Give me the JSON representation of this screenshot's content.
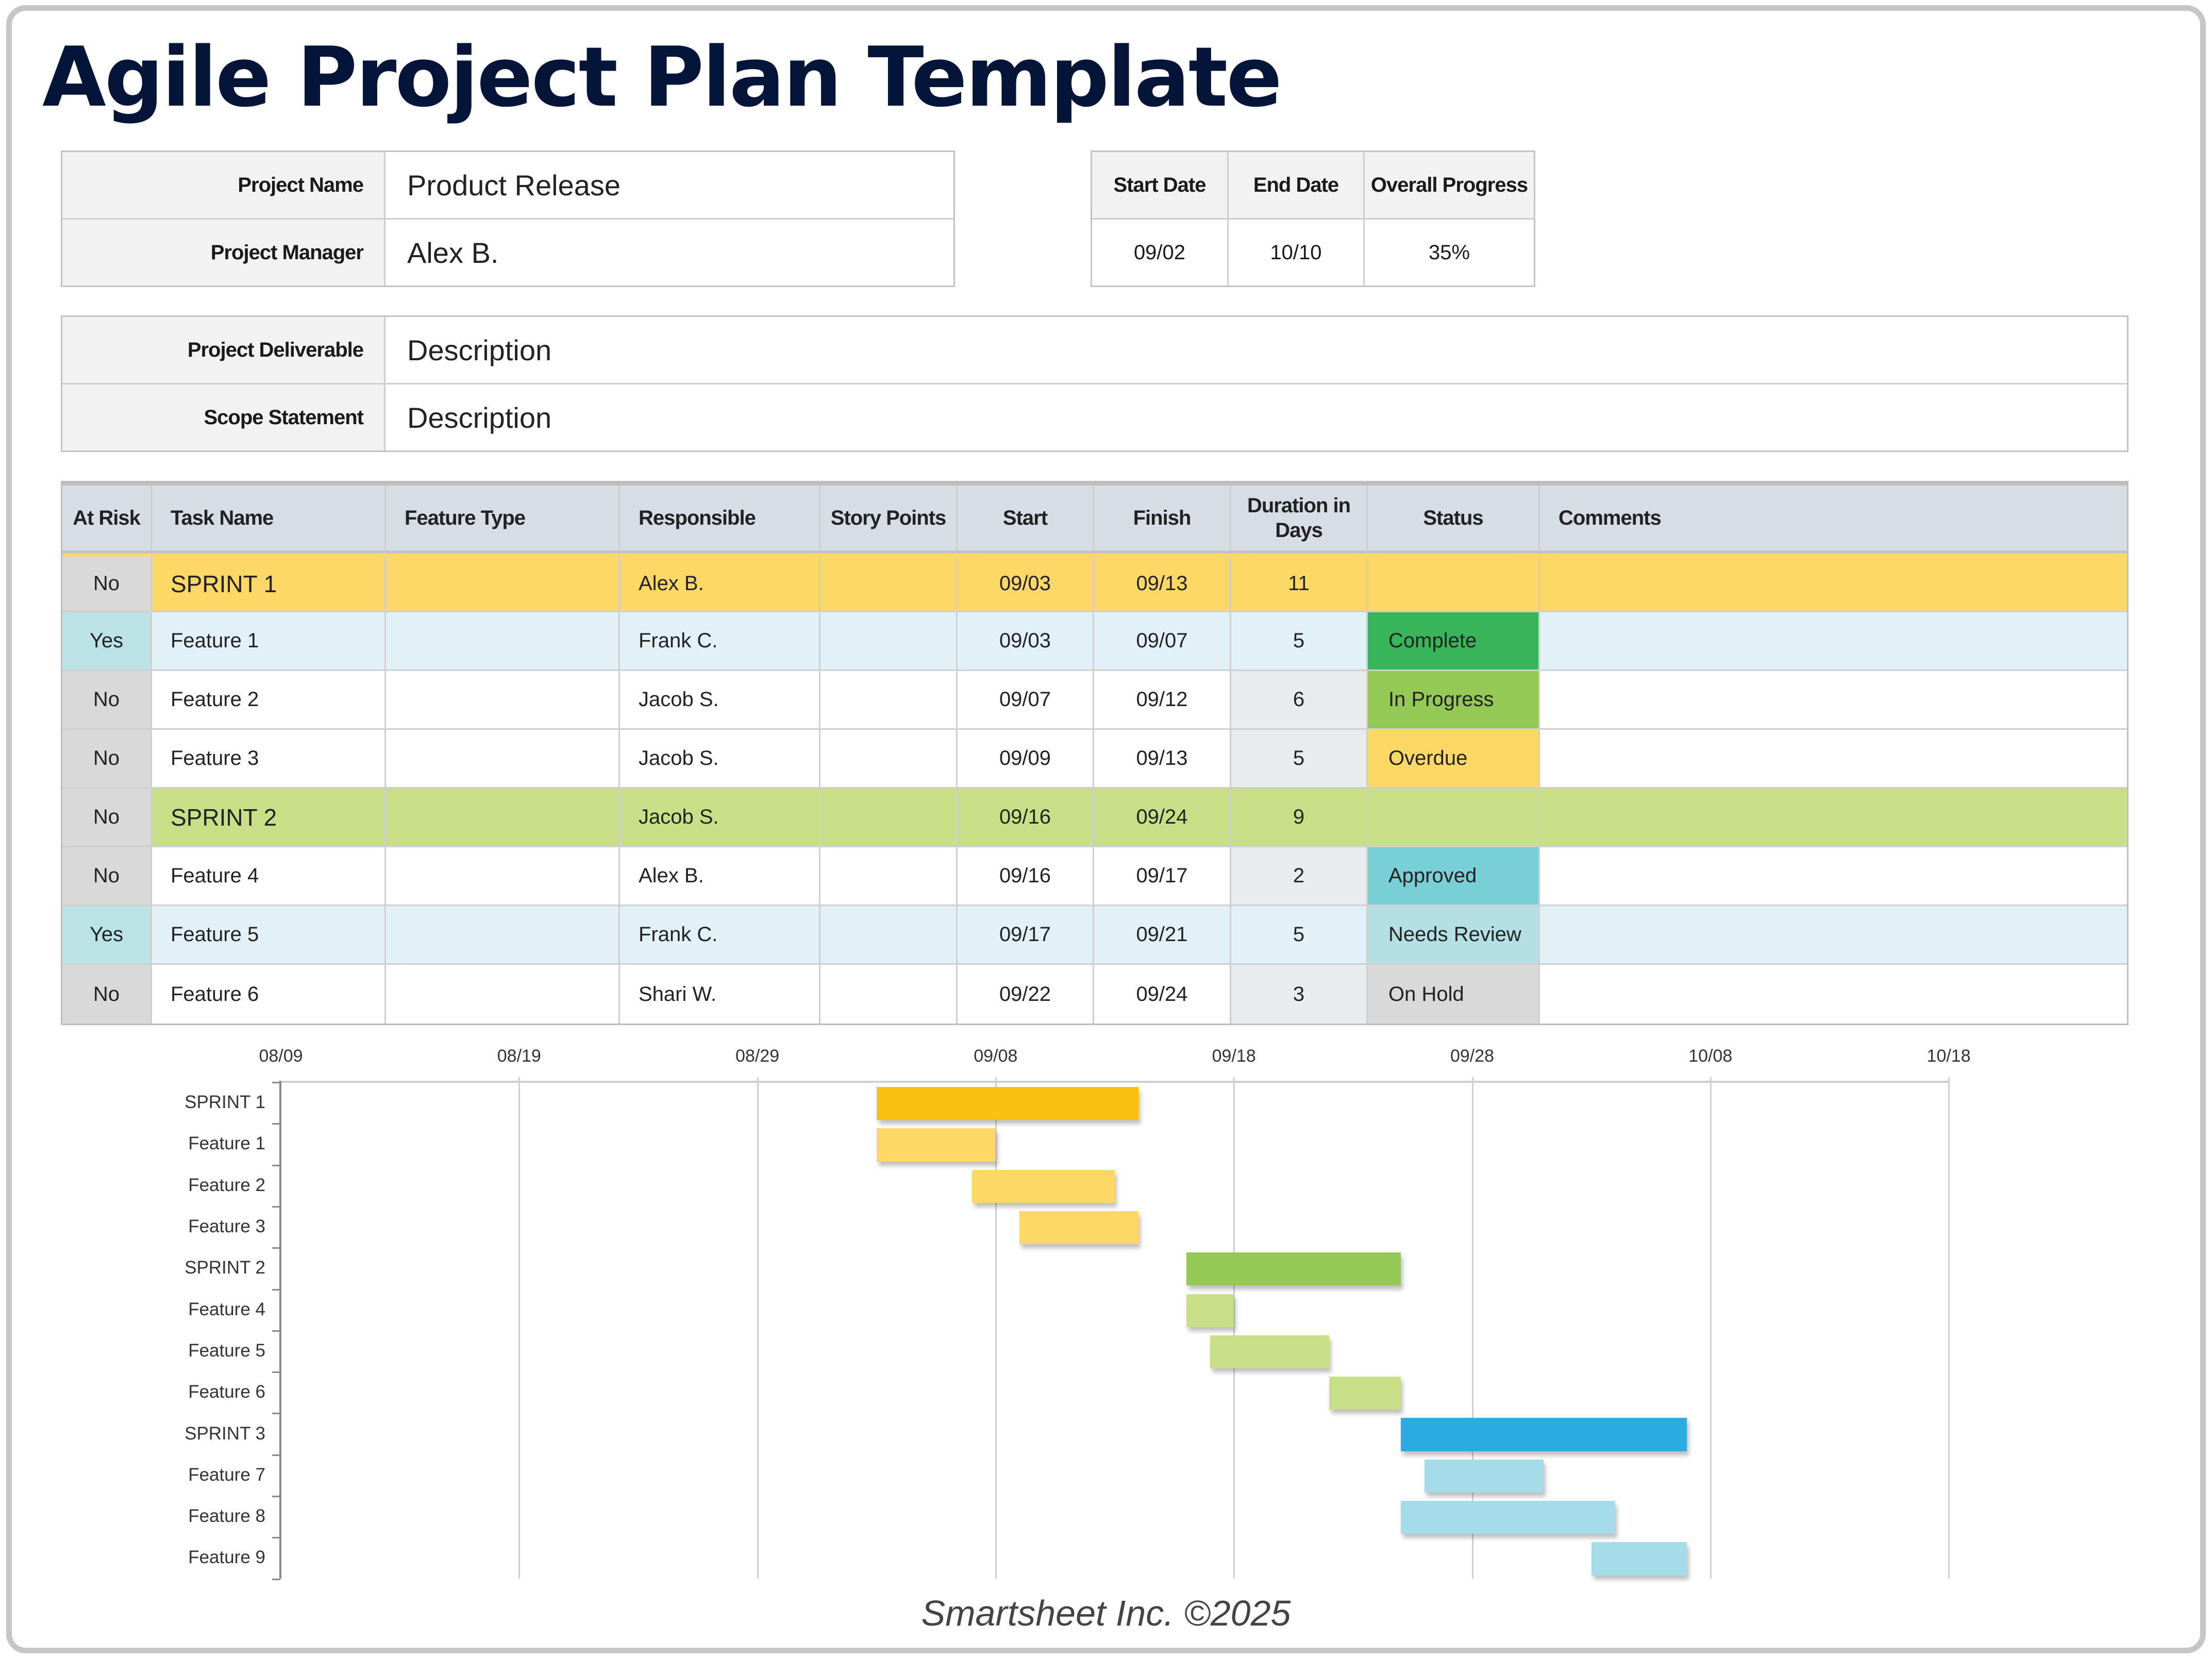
{
  "title": "Agile Project Plan Template",
  "project_info": {
    "rows": [
      {
        "label": "Project Name",
        "value": "Product Release"
      },
      {
        "label": "Project Manager",
        "value": "Alex B."
      }
    ]
  },
  "dates_box": {
    "headers": [
      "Start Date",
      "End Date",
      "Overall Progress"
    ],
    "values": [
      "09/02",
      "10/10",
      "35%"
    ]
  },
  "deliverable_box": {
    "rows": [
      {
        "label": "Project Deliverable",
        "value": "Description"
      },
      {
        "label": "Scope Statement",
        "value": "Description"
      }
    ]
  },
  "task_table": {
    "headers": {
      "at_risk": "At Risk",
      "task_name": "Task Name",
      "feature_type": "Feature Type",
      "responsible": "Responsible",
      "story_points": "Story Points",
      "start": "Start",
      "finish": "Finish",
      "duration": "Duration in Days",
      "status": "Status",
      "comments": "Comments"
    },
    "rows": [
      {
        "at_risk": "No",
        "task": "SPRINT 1",
        "feature_type": "",
        "responsible": "Alex B.",
        "story_points": "",
        "start": "09/03",
        "finish": "09/13",
        "duration": "11",
        "status": "",
        "comments": "",
        "kind": "sprint",
        "row_color": "#fdd866"
      },
      {
        "at_risk": "Yes",
        "task": "Feature 1",
        "feature_type": "",
        "responsible": "Frank C.",
        "story_points": "",
        "start": "09/03",
        "finish": "09/07",
        "duration": "5",
        "status": "Complete",
        "comments": "",
        "kind": "risk",
        "row_color": "#e2f1f7"
      },
      {
        "at_risk": "No",
        "task": "Feature 2",
        "feature_type": "",
        "responsible": "Jacob S.",
        "story_points": "",
        "start": "09/07",
        "finish": "09/12",
        "duration": "6",
        "status": "In Progress",
        "comments": "",
        "kind": "feature",
        "row_color": "#ffffff"
      },
      {
        "at_risk": "No",
        "task": "Feature 3",
        "feature_type": "",
        "responsible": "Jacob S.",
        "story_points": "",
        "start": "09/09",
        "finish": "09/13",
        "duration": "5",
        "status": "Overdue",
        "comments": "",
        "kind": "feature",
        "row_color": "#ffffff"
      },
      {
        "at_risk": "No",
        "task": "SPRINT 2",
        "feature_type": "",
        "responsible": "Jacob S.",
        "story_points": "",
        "start": "09/16",
        "finish": "09/24",
        "duration": "9",
        "status": "",
        "comments": "",
        "kind": "sprint",
        "row_color": "#c8df87"
      },
      {
        "at_risk": "No",
        "task": "Feature 4",
        "feature_type": "",
        "responsible": "Alex B.",
        "story_points": "",
        "start": "09/16",
        "finish": "09/17",
        "duration": "2",
        "status": "Approved",
        "comments": "",
        "kind": "feature",
        "row_color": "#ffffff"
      },
      {
        "at_risk": "Yes",
        "task": "Feature 5",
        "feature_type": "",
        "responsible": "Frank C.",
        "story_points": "",
        "start": "09/17",
        "finish": "09/21",
        "duration": "5",
        "status": "Needs Review",
        "comments": "",
        "kind": "risk",
        "row_color": "#e2f1f7"
      },
      {
        "at_risk": "No",
        "task": "Feature 6",
        "feature_type": "",
        "responsible": "Shari W.",
        "story_points": "",
        "start": "09/22",
        "finish": "09/24",
        "duration": "3",
        "status": "On Hold",
        "comments": "",
        "kind": "feature",
        "row_color": "#ffffff"
      }
    ],
    "status_colors": {
      "Complete": "#38b55b",
      "In Progress": "#95c955",
      "Overdue": "#fdd866",
      "Approved": "#78cfd6",
      "Needs Review": "#b5e0e3",
      "On Hold": "#d9d9d9"
    },
    "colors": {
      "header_bg": "#d6dde4",
      "at_risk_no_bg": "#d9d9d9",
      "at_risk_yes_bg": "#bbe3e6",
      "duration_bg": "#e9ecef"
    }
  },
  "chart_data": {
    "type": "gantt",
    "title": "",
    "x_axis": {
      "ticks": [
        "08/09",
        "08/19",
        "08/29",
        "09/08",
        "09/18",
        "09/28",
        "10/08",
        "10/18"
      ],
      "origin": "08/09",
      "tick_interval_days": 10,
      "range_days": [
        0,
        70
      ]
    },
    "grid": true,
    "categories": [
      "SPRINT 1",
      "Feature 1",
      "Feature 2",
      "Feature 3",
      "SPRINT 2",
      "Feature 4",
      "Feature 5",
      "Feature 6",
      "SPRINT 3",
      "Feature 7",
      "Feature 8",
      "Feature 9"
    ],
    "series": [
      {
        "name": "SPRINT 1",
        "start": "09/03",
        "end": "09/13",
        "start_day": 25,
        "duration": 11,
        "color": "#fcc013"
      },
      {
        "name": "Feature 1",
        "start": "09/03",
        "end": "09/07",
        "start_day": 25,
        "duration": 5,
        "color": "#fdd866"
      },
      {
        "name": "Feature 2",
        "start": "09/07",
        "end": "09/12",
        "start_day": 29,
        "duration": 6,
        "color": "#fdd866"
      },
      {
        "name": "Feature 3",
        "start": "09/09",
        "end": "09/13",
        "start_day": 31,
        "duration": 5,
        "color": "#fdd866"
      },
      {
        "name": "SPRINT 2",
        "start": "09/16",
        "end": "09/24",
        "start_day": 38,
        "duration": 9,
        "color": "#95c955"
      },
      {
        "name": "Feature 4",
        "start": "09/16",
        "end": "09/17",
        "start_day": 38,
        "duration": 2,
        "color": "#c8df87"
      },
      {
        "name": "Feature 5",
        "start": "09/17",
        "end": "09/21",
        "start_day": 39,
        "duration": 5,
        "color": "#c8df87"
      },
      {
        "name": "Feature 6",
        "start": "09/22",
        "end": "09/24",
        "start_day": 44,
        "duration": 3,
        "color": "#c8df87"
      },
      {
        "name": "SPRINT 3",
        "start": "09/25",
        "end": "10/06",
        "start_day": 47,
        "duration": 12,
        "color": "#2aace2"
      },
      {
        "name": "Feature 7",
        "start": "09/26",
        "end": "09/30",
        "start_day": 48,
        "duration": 5,
        "color": "#a4dcea"
      },
      {
        "name": "Feature 8",
        "start": "09/25",
        "end": "10/03",
        "start_day": 47,
        "duration": 9,
        "color": "#a4dcea"
      },
      {
        "name": "Feature 9",
        "start": "10/03",
        "end": "10/06",
        "start_day": 55,
        "duration": 4,
        "color": "#a4dcea"
      }
    ]
  },
  "footer": "Smartsheet Inc. ©2025"
}
